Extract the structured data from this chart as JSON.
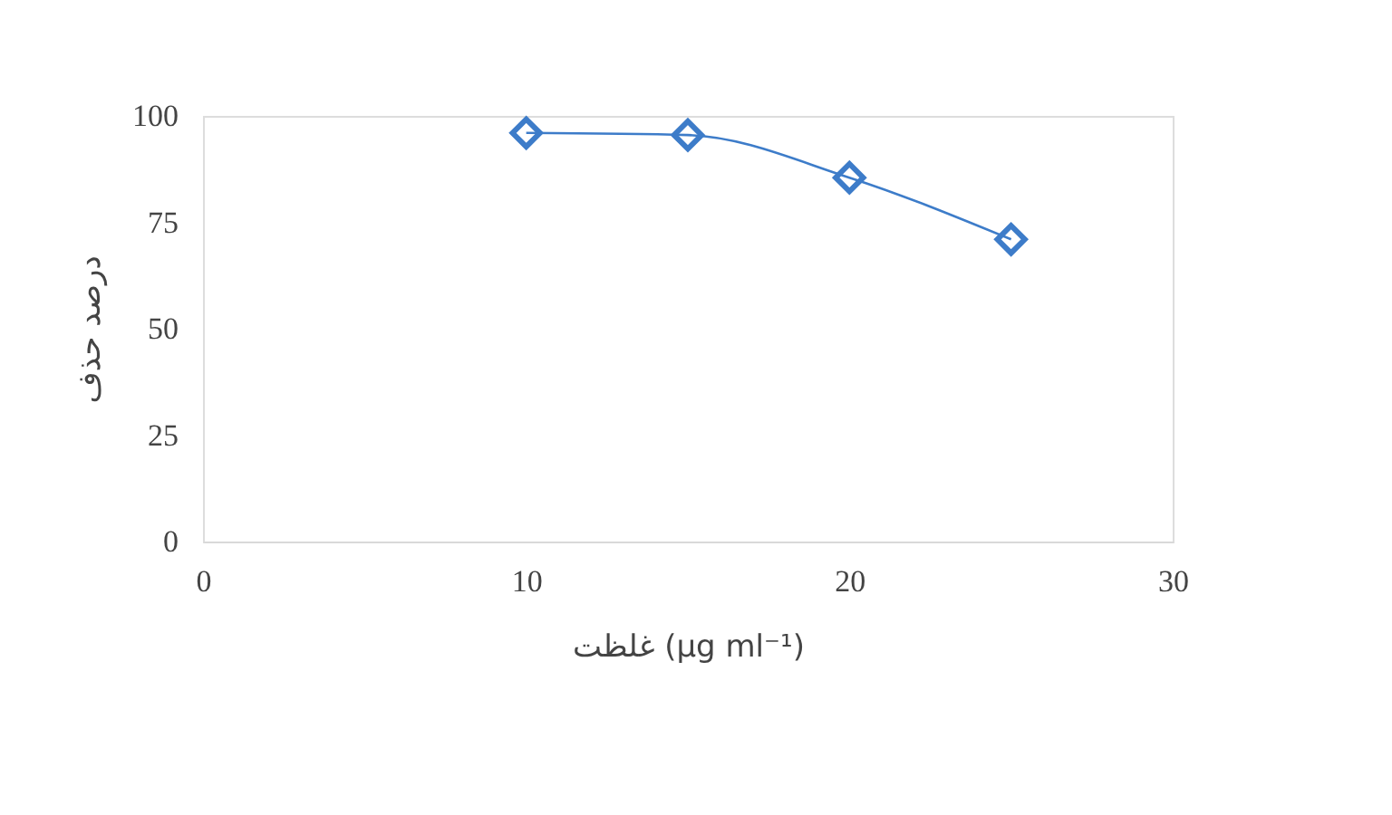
{
  "chart_data": {
    "type": "line",
    "xlabel": "غلظت (µg ml⁻¹)",
    "ylabel": "درصد حذف",
    "x": [
      10,
      15,
      20,
      25
    ],
    "series": [
      {
        "color": "#3d7cc9",
        "values": [
          96,
          95.5,
          85.5,
          71
        ]
      }
    ],
    "xlim": [
      0,
      30
    ],
    "xticks": [
      0,
      10,
      20,
      30
    ],
    "ylim": [
      0,
      100
    ],
    "yticks": [
      0,
      25,
      50,
      75,
      100
    ],
    "grid": false,
    "marker": "diamond",
    "line_style": "solid"
  }
}
